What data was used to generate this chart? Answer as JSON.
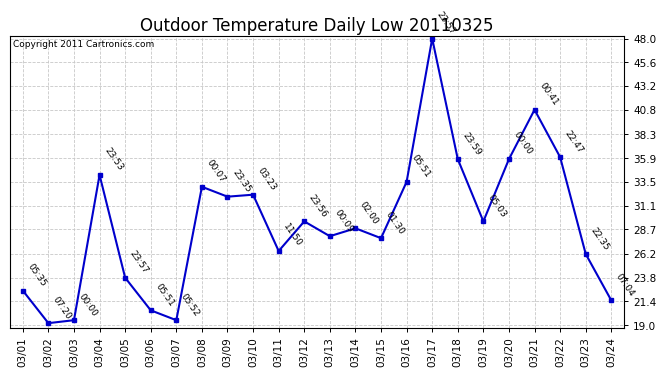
{
  "title": "Outdoor Temperature Daily Low 20110325",
  "copyright": "Copyright 2011 Cartronics.com",
  "x_labels": [
    "03/01",
    "03/02",
    "03/03",
    "03/04",
    "03/05",
    "03/06",
    "03/07",
    "03/08",
    "03/09",
    "03/10",
    "03/11",
    "03/12",
    "03/13",
    "03/14",
    "03/15",
    "03/16",
    "03/17",
    "03/18",
    "03/19",
    "03/20",
    "03/21",
    "03/22",
    "03/23",
    "03/24"
  ],
  "y_values": [
    22.5,
    19.2,
    19.5,
    34.2,
    23.8,
    20.5,
    19.5,
    33.0,
    32.0,
    32.2,
    26.5,
    29.5,
    28.0,
    28.8,
    27.8,
    33.5,
    48.0,
    35.8,
    29.5,
    35.8,
    40.8,
    36.0,
    26.2,
    21.5
  ],
  "time_labels": [
    "05:35",
    "07:20",
    "00:00",
    "23:53",
    "23:57",
    "05:51",
    "05:52",
    "00:07",
    "23:35",
    "03:23",
    "11:50",
    "23:56",
    "00:09",
    "02:00",
    "01:30",
    "05:51",
    "23:57",
    "23:59",
    "05:03",
    "00:00",
    "00:41",
    "22:47",
    "22:35",
    "07:04"
  ],
  "line_color": "#0000cc",
  "marker_color": "#0000cc",
  "background_color": "#ffffff",
  "grid_color": "#c8c8c8",
  "title_fontsize": 12,
  "tick_fontsize": 7.5,
  "annotation_fontsize": 6.5,
  "copyright_fontsize": 6.5,
  "y_min": 19.0,
  "y_max": 48.0,
  "y_ticks": [
    19.0,
    21.4,
    23.8,
    26.2,
    28.7,
    31.1,
    33.5,
    35.9,
    38.3,
    40.8,
    43.2,
    45.6,
    48.0
  ]
}
